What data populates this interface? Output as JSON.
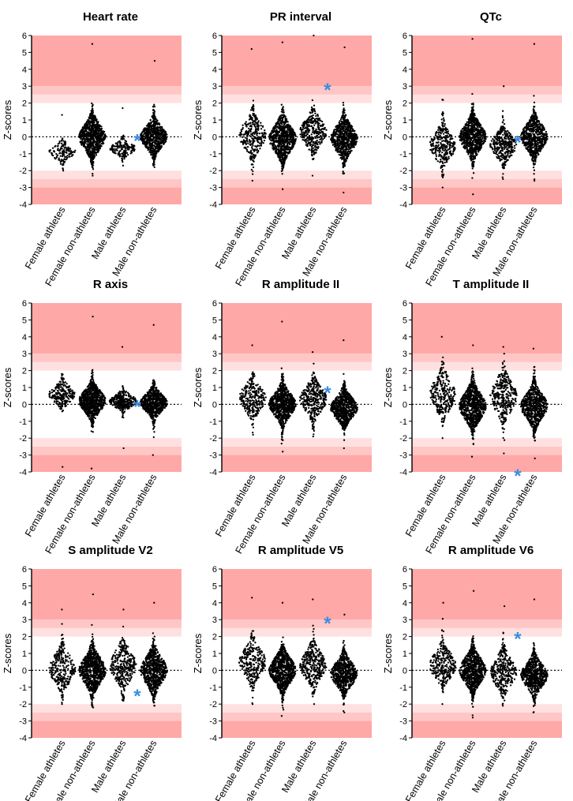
{
  "colors": {
    "band_outer": "#ffa8a8",
    "band_mid": "#ffc6c6",
    "band_inner": "#ffe0e0",
    "dots": "#000000",
    "asterisk": "#3c8dde"
  },
  "chart_data": [
    {
      "type": "scatter",
      "title": "Heart rate",
      "ylabel": "Z-scores",
      "ylim": [
        -4,
        6
      ],
      "yticks": [
        -4,
        -3,
        -2,
        -1,
        0,
        1,
        2,
        3,
        4,
        5,
        6
      ],
      "categories": [
        "Female athletes",
        "Female non-athletes",
        "Male athletes",
        "Male non-athletes"
      ],
      "series": [
        {
          "name": "Female athletes",
          "min": -2.0,
          "max": 1.3,
          "center": -0.9,
          "spread": 0.35,
          "count": 140
        },
        {
          "name": "Female non-athletes",
          "min": -2.3,
          "max": 5.5,
          "center": 0.0,
          "spread": 0.7,
          "count": 800
        },
        {
          "name": "Male athletes",
          "min": -1.7,
          "max": 1.7,
          "center": -0.7,
          "spread": 0.3,
          "count": 160
        },
        {
          "name": "Male non-athletes",
          "min": -1.8,
          "max": 4.5,
          "center": 0.0,
          "spread": 0.6,
          "count": 700
        }
      ],
      "annotations": [
        {
          "text": "*",
          "y": 0.0
        }
      ]
    },
    {
      "type": "scatter",
      "title": "PR interval",
      "ylabel": "Z-scores",
      "ylim": [
        -4,
        6
      ],
      "yticks": [
        -4,
        -3,
        -2,
        -1,
        0,
        1,
        2,
        3,
        4,
        5,
        6
      ],
      "categories": [
        "Female athletes",
        "Female non-athletes",
        "Male athletes",
        "Male non-athletes"
      ],
      "series": [
        {
          "name": "Female athletes",
          "min": -2.6,
          "max": 5.2,
          "center": 0.1,
          "spread": 0.75,
          "count": 300
        },
        {
          "name": "Female non-athletes",
          "min": -3.1,
          "max": 5.6,
          "center": -0.1,
          "spread": 0.75,
          "count": 700
        },
        {
          "name": "Male athletes",
          "min": -2.3,
          "max": 6.0,
          "center": 0.3,
          "spread": 0.7,
          "count": 350
        },
        {
          "name": "Male non-athletes",
          "min": -3.3,
          "max": 5.3,
          "center": -0.1,
          "spread": 0.7,
          "count": 700
        }
      ],
      "annotations": [
        {
          "text": "*",
          "y": 3.0
        }
      ]
    },
    {
      "type": "scatter",
      "title": "QTc",
      "ylabel": "Z-scores",
      "ylim": [
        -4,
        6
      ],
      "yticks": [
        -4,
        -3,
        -2,
        -1,
        0,
        1,
        2,
        3,
        4,
        5,
        6
      ],
      "categories": [
        "Female athletes",
        "Female non-athletes",
        "Male athletes",
        "Male non-athletes"
      ],
      "series": [
        {
          "name": "Female athletes",
          "min": -3.0,
          "max": 2.2,
          "center": -0.5,
          "spread": 0.7,
          "count": 300
        },
        {
          "name": "Female non-athletes",
          "min": -3.4,
          "max": 5.8,
          "center": 0.0,
          "spread": 0.7,
          "count": 800
        },
        {
          "name": "Male athletes",
          "min": -2.5,
          "max": 3.0,
          "center": -0.5,
          "spread": 0.6,
          "count": 350
        },
        {
          "name": "Male non-athletes",
          "min": -2.6,
          "max": 5.5,
          "center": 0.0,
          "spread": 0.7,
          "count": 700
        }
      ],
      "annotations": [
        {
          "text": "*",
          "y": -0.1
        }
      ]
    },
    {
      "type": "scatter",
      "title": "R axis",
      "ylabel": "Z-scores",
      "ylim": [
        -4,
        6
      ],
      "yticks": [
        -4,
        -3,
        -2,
        -1,
        0,
        1,
        2,
        3,
        4,
        5,
        6
      ],
      "categories": [
        "Female athletes",
        "Female non-athletes",
        "Male athletes",
        "Male non-athletes"
      ],
      "series": [
        {
          "name": "Female athletes",
          "min": -3.7,
          "max": 1.8,
          "center": 0.6,
          "spread": 0.45,
          "count": 250
        },
        {
          "name": "Female non-athletes",
          "min": -3.8,
          "max": 5.2,
          "center": 0.2,
          "spread": 0.6,
          "count": 800
        },
        {
          "name": "Male athletes",
          "min": -2.6,
          "max": 3.4,
          "center": 0.2,
          "spread": 0.35,
          "count": 300
        },
        {
          "name": "Male non-athletes",
          "min": -3.0,
          "max": 4.7,
          "center": 0.1,
          "spread": 0.5,
          "count": 700
        }
      ],
      "annotations": [
        {
          "text": "*",
          "y": 0.1
        }
      ]
    },
    {
      "type": "scatter",
      "title": "R amplitude II",
      "ylabel": "Z-scores",
      "ylim": [
        -4,
        6
      ],
      "yticks": [
        -4,
        -3,
        -2,
        -1,
        0,
        1,
        2,
        3,
        4,
        5,
        6
      ],
      "categories": [
        "Female athletes",
        "Female non-athletes",
        "Male athletes",
        "Male non-athletes"
      ],
      "series": [
        {
          "name": "Female athletes",
          "min": -1.8,
          "max": 3.5,
          "center": 0.4,
          "spread": 0.7,
          "count": 300
        },
        {
          "name": "Female non-athletes",
          "min": -2.8,
          "max": 4.9,
          "center": 0.0,
          "spread": 0.65,
          "count": 800
        },
        {
          "name": "Male athletes",
          "min": -1.9,
          "max": 3.1,
          "center": 0.3,
          "spread": 0.7,
          "count": 350
        },
        {
          "name": "Male non-athletes",
          "min": -2.6,
          "max": 3.8,
          "center": -0.2,
          "spread": 0.6,
          "count": 700
        }
      ],
      "annotations": [
        {
          "text": "*",
          "y": 0.9
        }
      ]
    },
    {
      "type": "scatter",
      "title": "T amplitude II",
      "ylabel": "Z-scores",
      "ylim": [
        -4,
        6
      ],
      "yticks": [
        -4,
        -3,
        -2,
        -1,
        0,
        1,
        2,
        3,
        4,
        5,
        6
      ],
      "categories": [
        "Female athletes",
        "Female non-athletes",
        "Male athletes",
        "Male non-athletes"
      ],
      "series": [
        {
          "name": "Female athletes",
          "min": -2.0,
          "max": 4.0,
          "center": 0.6,
          "spread": 0.8,
          "count": 300
        },
        {
          "name": "Female non-athletes",
          "min": -3.1,
          "max": 3.5,
          "center": -0.1,
          "spread": 0.75,
          "count": 800
        },
        {
          "name": "Male athletes",
          "min": -2.9,
          "max": 3.4,
          "center": 0.5,
          "spread": 0.85,
          "count": 350
        },
        {
          "name": "Male non-athletes",
          "min": -3.2,
          "max": 3.3,
          "center": -0.1,
          "spread": 0.7,
          "count": 700
        }
      ],
      "annotations": [
        {
          "text": "*",
          "y": -4.0
        }
      ]
    },
    {
      "type": "scatter",
      "title": "S amplitude V2",
      "ylabel": "Z-scores",
      "ylim": [
        -4,
        6
      ],
      "yticks": [
        -4,
        -3,
        -2,
        -1,
        0,
        1,
        2,
        3,
        4,
        5,
        6
      ],
      "categories": [
        "Female athletes",
        "Female non-athletes",
        "Male athletes",
        "Male non-athletes"
      ],
      "series": [
        {
          "name": "Female athletes",
          "min": -2.0,
          "max": 3.6,
          "center": 0.1,
          "spread": 0.75,
          "count": 300
        },
        {
          "name": "Female non-athletes",
          "min": -2.2,
          "max": 4.5,
          "center": 0.0,
          "spread": 0.75,
          "count": 800
        },
        {
          "name": "Male athletes",
          "min": -1.8,
          "max": 3.6,
          "center": 0.3,
          "spread": 0.8,
          "count": 350
        },
        {
          "name": "Male non-athletes",
          "min": -2.1,
          "max": 4.0,
          "center": 0.0,
          "spread": 0.75,
          "count": 700
        }
      ],
      "annotations": [
        {
          "text": "*",
          "y": -1.3
        }
      ]
    },
    {
      "type": "scatter",
      "title": "R amplitude V5",
      "ylabel": "Z-scores",
      "ylim": [
        -4,
        6
      ],
      "yticks": [
        -4,
        -3,
        -2,
        -1,
        0,
        1,
        2,
        3,
        4,
        5,
        6
      ],
      "categories": [
        "Female athletes",
        "Female non-athletes",
        "Male athletes",
        "Male non-athletes"
      ],
      "series": [
        {
          "name": "Female athletes",
          "min": -2.0,
          "max": 4.3,
          "center": 0.5,
          "spread": 0.75,
          "count": 300
        },
        {
          "name": "Female non-athletes",
          "min": -2.7,
          "max": 4.0,
          "center": 0.0,
          "spread": 0.7,
          "count": 800
        },
        {
          "name": "Male athletes",
          "min": -2.0,
          "max": 4.2,
          "center": 0.3,
          "spread": 0.75,
          "count": 350
        },
        {
          "name": "Male non-athletes",
          "min": -2.5,
          "max": 3.3,
          "center": -0.2,
          "spread": 0.65,
          "count": 700
        }
      ],
      "annotations": [
        {
          "text": "*",
          "y": 3.0
        }
      ]
    },
    {
      "type": "scatter",
      "title": "R amplitude V6",
      "ylabel": "Z-scores",
      "ylim": [
        -4,
        6
      ],
      "yticks": [
        -4,
        -3,
        -2,
        -1,
        0,
        1,
        2,
        3,
        4,
        5,
        6
      ],
      "categories": [
        "Female athletes",
        "Female non-athletes",
        "Male athletes",
        "Male non-athletes"
      ],
      "series": [
        {
          "name": "Female athletes",
          "min": -2.0,
          "max": 4.0,
          "center": 0.3,
          "spread": 0.7,
          "count": 300
        },
        {
          "name": "Female non-athletes",
          "min": -2.8,
          "max": 4.7,
          "center": 0.0,
          "spread": 0.7,
          "count": 800
        },
        {
          "name": "Male athletes",
          "min": -2.1,
          "max": 3.8,
          "center": -0.1,
          "spread": 0.75,
          "count": 350
        },
        {
          "name": "Male non-athletes",
          "min": -2.5,
          "max": 4.2,
          "center": -0.3,
          "spread": 0.65,
          "count": 700
        }
      ],
      "annotations": [
        {
          "text": "*",
          "y": 2.1
        }
      ]
    }
  ]
}
